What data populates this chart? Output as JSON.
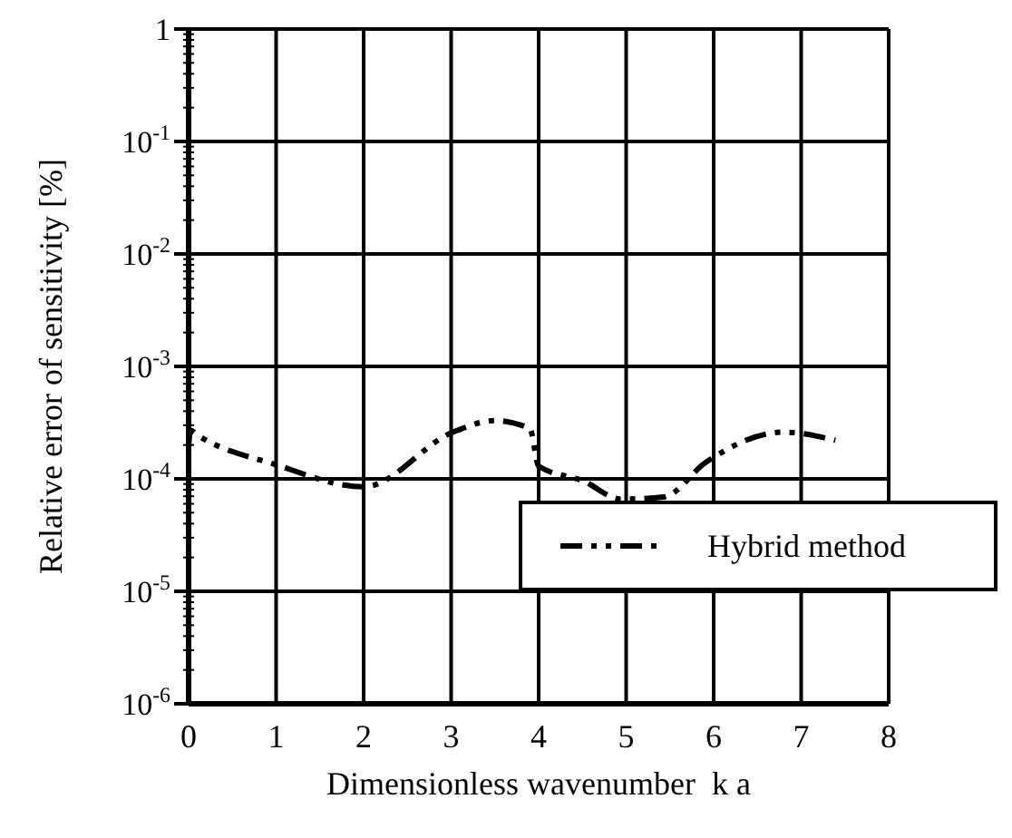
{
  "chart_data": {
    "type": "line",
    "xlabel": "Dimensionless wavenumber  k a",
    "ylabel": "Relative error of sensitivity [%]",
    "xlim": [
      0,
      8
    ],
    "xticks": [
      0,
      1,
      2,
      3,
      4,
      5,
      6,
      7,
      8
    ],
    "ylim": [
      1e-06,
      1
    ],
    "yticks": [
      {
        "value": 1e-06,
        "label": "10$^{-6}$"
      },
      {
        "value": 1e-05,
        "label": "10$^{-5}$"
      },
      {
        "value": 0.0001,
        "label": "10$^{-4}$"
      },
      {
        "value": 0.001,
        "label": "10$^{-3}$"
      },
      {
        "value": 0.01,
        "label": "10$^{-2}$"
      },
      {
        "value": 0.1,
        "label": "10$^{-1}$"
      },
      1
    ],
    "log": "y",
    "grid": true,
    "legend": "bottom right",
    "line_style": "dashed",
    "series": [
      {
        "name": "Hybrid method",
        "color": "#000000",
        "x": [
          0,
          0.02,
          0.12,
          0.98,
          2.0,
          3.02,
          3.5,
          3.9,
          4.0,
          4.52,
          4.94,
          5.43,
          5.91,
          6.8,
          7.39
        ],
        "values": [
          0.00019,
          0.00027,
          0.00024,
          0.000135,
          8.5e-05,
          0.00026,
          0.00033,
          0.00028,
          0.00013,
          9.5e-05,
          6.6e-05,
          6.9e-05,
          0.00014,
          0.00026,
          0.00022
        ]
      }
    ]
  }
}
